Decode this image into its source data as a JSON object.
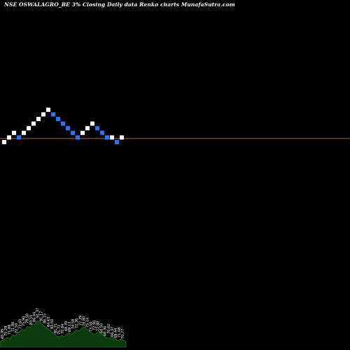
{
  "chart_data": {
    "type": "renko",
    "title": "NSE OSWALAGRO_BE 3% Closing Daily data  Renko  charts MunafaSutra.com",
    "colors": {
      "background": "#000000",
      "up_brick": "#ffffff",
      "down_brick": "#1e78ff",
      "price_line": "#b8621c",
      "volume_fill": "#0d3b10",
      "volume_stroke": "#2a8a2a",
      "volume_label": "#ffffff"
    },
    "bricks": [
      {
        "dir": "up",
        "level": 0
      },
      {
        "dir": "up",
        "level": 1
      },
      {
        "dir": "up",
        "level": 2
      },
      {
        "dir": "down",
        "level": 1
      },
      {
        "dir": "up",
        "level": 2
      },
      {
        "dir": "up",
        "level": 3
      },
      {
        "dir": "up",
        "level": 4
      },
      {
        "dir": "up",
        "level": 5
      },
      {
        "dir": "up",
        "level": 6
      },
      {
        "dir": "up",
        "level": 7
      },
      {
        "dir": "down",
        "level": 6
      },
      {
        "dir": "down",
        "level": 5
      },
      {
        "dir": "down",
        "level": 4
      },
      {
        "dir": "down",
        "level": 3
      },
      {
        "dir": "down",
        "level": 2
      },
      {
        "dir": "down",
        "level": 1
      },
      {
        "dir": "up",
        "level": 2
      },
      {
        "dir": "up",
        "level": 3
      },
      {
        "dir": "up",
        "level": 4
      },
      {
        "dir": "down",
        "level": 3
      },
      {
        "dir": "down",
        "level": 2
      },
      {
        "dir": "down",
        "level": 1
      },
      {
        "dir": "up",
        "level": 1
      },
      {
        "dir": "down",
        "level": 0
      },
      {
        "dir": "up",
        "level": 1
      }
    ],
    "last_price_level": 1,
    "volume_labels": [
      "65.95",
      "70.29",
      "71.88",
      "71.80",
      "72.50",
      "73.60",
      "75.90",
      "78.50",
      "84.55",
      "86.44",
      "91.37",
      "91.17",
      "86.15",
      "84.43",
      "83.50",
      "81.71",
      "75.72",
      "70.84",
      "68.70",
      "69.13",
      "74.58",
      "72.36",
      "77.39",
      "78.80",
      "75.14",
      "73.50",
      "72.90",
      "72.80",
      "68.50",
      "68.36",
      "70.02",
      "66.37",
      "69.44",
      "71.08",
      "70.77"
    ],
    "volume_profile": [
      8,
      10,
      12,
      14,
      12,
      18,
      16,
      20,
      22,
      26,
      24,
      30,
      28,
      34,
      32,
      38,
      36,
      33,
      30,
      27,
      25,
      22,
      19,
      16,
      14,
      17,
      15,
      19,
      21,
      18,
      22,
      25,
      23,
      27,
      29,
      26,
      24,
      21,
      18,
      20,
      23,
      19,
      16,
      14,
      12,
      15,
      13,
      11,
      9,
      12,
      10,
      8
    ]
  }
}
